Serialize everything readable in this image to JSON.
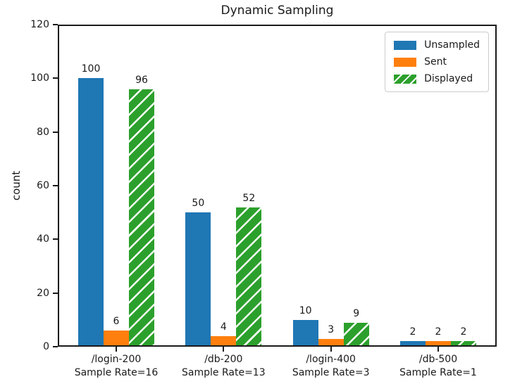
{
  "chart_data": {
    "type": "bar",
    "title": "Dynamic Sampling",
    "xlabel": "",
    "ylabel": "count",
    "ylim": [
      0,
      120
    ],
    "yticks": [
      0,
      20,
      40,
      60,
      80,
      100,
      120
    ],
    "grid": false,
    "legend_position": "upper-right",
    "bar_value_labels": true,
    "categories": [
      {
        "label": "/login-200",
        "sublabel": "Sample Rate=16"
      },
      {
        "label": "/db-200",
        "sublabel": "Sample Rate=13"
      },
      {
        "label": "/login-400",
        "sublabel": "Sample Rate=3"
      },
      {
        "label": "/db-500",
        "sublabel": "Sample Rate=1"
      }
    ],
    "series": [
      {
        "name": "Unsampled",
        "color": "#1f77b4",
        "hatch": false,
        "values": [
          100,
          50,
          10,
          2
        ]
      },
      {
        "name": "Sent",
        "color": "#ff7f0e",
        "hatch": false,
        "values": [
          6,
          4,
          3,
          2
        ]
      },
      {
        "name": "Displayed",
        "color": "#2ca02c",
        "hatch": true,
        "values": [
          96,
          52,
          9,
          2
        ]
      }
    ],
    "hatch_stripe_color": "#ffffff"
  }
}
